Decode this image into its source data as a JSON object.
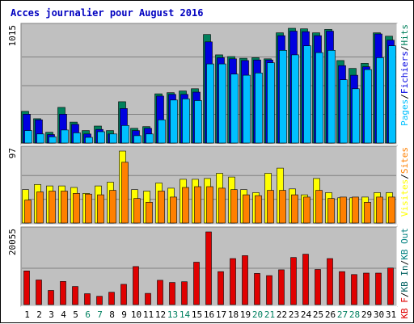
{
  "chart_data": {
    "type": "bar",
    "title": "Acces journalier pour August 2016",
    "colors": {
      "hits": "#00805c",
      "files": "#0000e0",
      "pages": "#00c0ff",
      "visits": "#ffff00",
      "sites": "#ff8000",
      "kbin": "#006060",
      "kbout": "#008080",
      "kbf": "#e00000",
      "weekend_label": "#008060",
      "panel_bg": "#c0c0c0",
      "frame": "#000000"
    },
    "x": {
      "days": [
        "1",
        "2",
        "3",
        "4",
        "5",
        "6",
        "7",
        "8",
        "9",
        "10",
        "11",
        "12",
        "13",
        "14",
        "15",
        "16",
        "17",
        "18",
        "19",
        "20",
        "21",
        "22",
        "23",
        "24",
        "25",
        "26",
        "27",
        "28",
        "29",
        "30",
        "31"
      ],
      "weekend": [
        "6",
        "7",
        "13",
        "14",
        "20",
        "21",
        "27",
        "28"
      ]
    },
    "panels": [
      {
        "name": "traffic",
        "ymax": 1015,
        "ymax_label": "1015",
        "legend": [
          {
            "label": "Pages",
            "color": "#00c0ff"
          },
          {
            "label": "/",
            "color": "#000000"
          },
          {
            "label": "Fichiers",
            "color": "#0000e0"
          },
          {
            "label": "/",
            "color": "#000000"
          },
          {
            "label": "Hits",
            "color": "#00805c"
          }
        ],
        "series": [
          {
            "name": "Hits",
            "values": [
              280,
              215,
              95,
              315,
              185,
              110,
              150,
              110,
              365,
              130,
              145,
              435,
              445,
              460,
              480,
              960,
              780,
              765,
              750,
              755,
              745,
              975,
              1015,
              1010,
              975,
              1005,
              730,
              660,
              705,
              975,
              945
            ]
          },
          {
            "name": "Fichiers",
            "values": [
              255,
              205,
              75,
              255,
              165,
              80,
              120,
              80,
              305,
              110,
              130,
              415,
              430,
              430,
              450,
              895,
              755,
              745,
              730,
              735,
              735,
              950,
              990,
              985,
              950,
              990,
              685,
              600,
              675,
              965,
              910
            ]
          },
          {
            "name": "Pages",
            "values": [
              110,
              80,
              55,
              115,
              90,
              50,
              100,
              80,
              155,
              65,
              80,
              205,
              380,
              390,
              375,
              700,
              700,
              610,
              600,
              620,
              710,
              820,
              780,
              860,
              800,
              820,
              560,
              480,
              650,
              755,
              860
            ]
          }
        ]
      },
      {
        "name": "visitors",
        "ymax": 97,
        "ymax_label": "97",
        "legend": [
          {
            "label": "Visites",
            "color": "#ffff00"
          },
          {
            "label": "/",
            "color": "#000000"
          },
          {
            "label": "Sites",
            "color": "#ff8000"
          }
        ],
        "series": [
          {
            "name": "Visites",
            "values": [
              45,
              52,
              50,
              50,
              48,
              40,
              50,
              55,
              97,
              45,
              43,
              54,
              47,
              59,
              59,
              60,
              67,
              62,
              45,
              41,
              67,
              74,
              46,
              38,
              60,
              41,
              34,
              34,
              35,
              41,
              41
            ]
          },
          {
            "name": "Sites",
            "values": [
              31,
              42,
              43,
              43,
              40,
              39,
              38,
              44,
              82,
              33,
              28,
              43,
              35,
              48,
              49,
              49,
              47,
              45,
              38,
              37,
              44,
              44,
              38,
              35,
              44,
              33,
              35,
              35,
              28,
              35,
              35
            ]
          }
        ]
      },
      {
        "name": "volume",
        "ymax": 20055,
        "ymax_label": "20055",
        "legend": [
          {
            "label": "KB F",
            "color": "#e00000"
          },
          {
            "label": "/",
            "color": "#000000"
          },
          {
            "label": "KB In",
            "color": "#006060"
          },
          {
            "label": "/",
            "color": "#000000"
          },
          {
            "label": "KB Out",
            "color": "#008080"
          }
        ],
        "series": [
          {
            "name": "KB F",
            "values": [
              9300,
              6800,
              3900,
              6400,
              5000,
              3000,
              2300,
              3400,
              5600,
              10500,
              3100,
              6700,
              6100,
              6300,
              11700,
              20055,
              9100,
              12700,
              13500,
              8600,
              8000,
              9600,
              13000,
              13900,
              9700,
              12700,
              9100,
              8300,
              8700,
              8700,
              10100
            ]
          }
        ]
      }
    ]
  }
}
